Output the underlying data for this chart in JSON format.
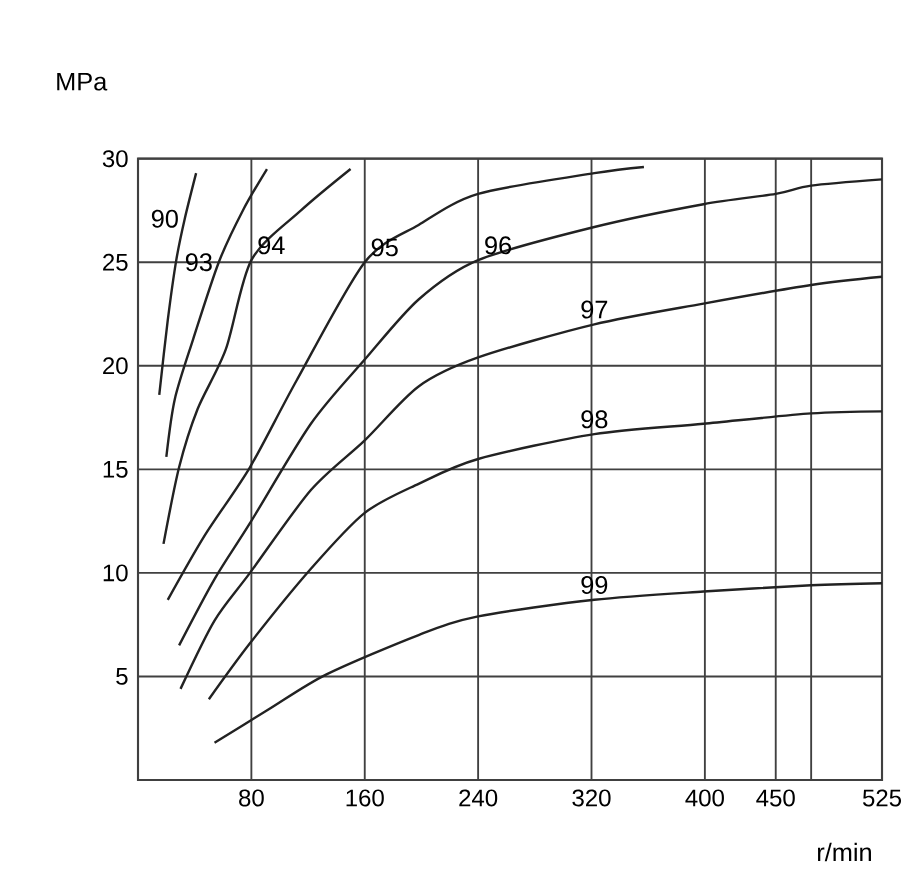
{
  "chart_data": {
    "type": "line",
    "xlabel": "r/min",
    "ylabel": "MPa",
    "xlim": [
      0,
      525
    ],
    "ylim": [
      0,
      30
    ],
    "xticks": [
      80,
      160,
      240,
      320,
      400,
      450,
      {
        "value": 475,
        "label": null
      },
      525
    ],
    "yticks": [
      5,
      10,
      15,
      20,
      25,
      30
    ],
    "grid": true,
    "series": [
      {
        "name": "90",
        "color": "#222222",
        "x": [
          15,
          21,
          27,
          33,
          41
        ],
        "values": [
          18.6,
          22.2,
          25.1,
          27.1,
          29.3
        ]
      },
      {
        "name": "93",
        "color": "#222222",
        "x": [
          20,
          26,
          39,
          57,
          74,
          91
        ],
        "values": [
          15.6,
          18.4,
          21.3,
          25.0,
          27.5,
          29.5
        ]
      },
      {
        "name": "94",
        "color": "#222222",
        "x": [
          18,
          29,
          42,
          62,
          80,
          115,
          150
        ],
        "values": [
          11.4,
          15.1,
          17.9,
          20.8,
          25.1,
          27.5,
          29.5
        ]
      },
      {
        "name": "95",
        "color": "#222222",
        "x": [
          21,
          47,
          79,
          112,
          160,
          198,
          240,
          322,
          357
        ],
        "values": [
          8.7,
          11.8,
          15.1,
          19.3,
          25.0,
          26.8,
          28.3,
          29.3,
          29.6
        ]
      },
      {
        "name": "96",
        "color": "#222222",
        "x": [
          29,
          54,
          79,
          122,
          160,
          198,
          240,
          322,
          399,
          450,
          475,
          525
        ],
        "values": [
          6.5,
          9.7,
          12.4,
          17.2,
          20.3,
          23.2,
          25.1,
          26.7,
          27.8,
          28.3,
          28.7,
          29.0
        ]
      },
      {
        "name": "97",
        "color": "#222222",
        "x": [
          30,
          54,
          79,
          122,
          160,
          198,
          240,
          322,
          399,
          475,
          525
        ],
        "values": [
          4.4,
          7.7,
          10.0,
          14.0,
          16.4,
          19.0,
          20.4,
          22.0,
          23.0,
          23.9,
          24.3
        ]
      },
      {
        "name": "98",
        "color": "#222222",
        "x": [
          50,
          79,
          122,
          160,
          198,
          240,
          322,
          399,
          475,
          525
        ],
        "values": [
          3.9,
          6.6,
          10.2,
          12.9,
          14.3,
          15.5,
          16.7,
          17.2,
          17.7,
          17.8
        ]
      },
      {
        "name": "99",
        "color": "#222222",
        "x": [
          54,
          92,
          133,
          198,
          240,
          322,
          399,
          475,
          525
        ],
        "values": [
          1.8,
          3.4,
          5.1,
          7.0,
          7.9,
          8.7,
          9.1,
          9.4,
          9.5
        ]
      }
    ]
  }
}
